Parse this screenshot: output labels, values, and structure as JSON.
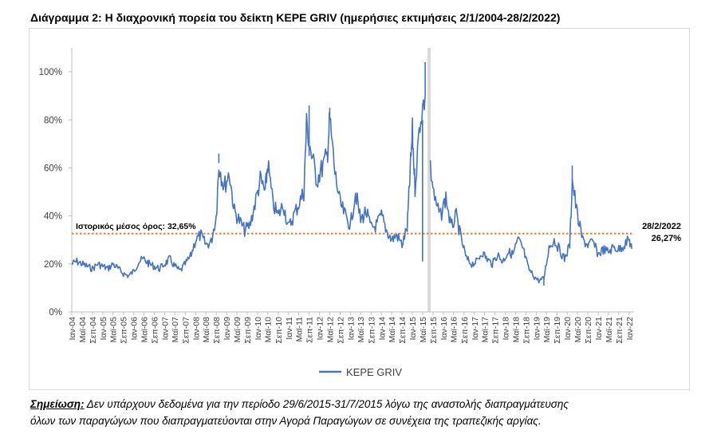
{
  "title": "Διάγραμμα 2: Η διαχρονική πορεία του δείκτη ΚΕΡΕ GRIV (ημερήσιες εκτιμήσεις 2/1/2004-28/2/2022)",
  "note": {
    "label": "Σημείωση:",
    "line1": " Δεν υπάρχουν δεδομένα για την περίοδο 29/6/2015-31/7/2015 λόγω της αναστολής διαπραγμάτευσης",
    "line2": "όλων των παραγώγων που διαπραγματεύονται στην Αγορά Παραγώγων σε συνέχεια της τραπεζικής αργίας."
  },
  "colors": {
    "series": "#4472C4",
    "mean_line": "#ED7D31",
    "gap_band": "#D9D9D9",
    "axis": "#BFBFBF"
  },
  "chart_data": {
    "type": "line",
    "title": "",
    "xlabel": "",
    "ylabel": "",
    "ylim": [
      0,
      1.1
    ],
    "y_ticks": [
      "0%",
      "20%",
      "40%",
      "60%",
      "80%",
      "100%"
    ],
    "x_tick_labels": [
      "Ιαν-04",
      "Μαϊ-04",
      "Σεπ-04",
      "Ιαν-05",
      "Μαϊ-05",
      "Σεπ-05",
      "Ιαν-06",
      "Μαϊ-06",
      "Σεπ-06",
      "Ιαν-07",
      "Μαϊ-07",
      "Σεπ-07",
      "Ιαν-08",
      "Μαϊ-08",
      "Σεπ-08",
      "Ιαν-09",
      "Μαϊ-09",
      "Σεπ-09",
      "Ιαν-10",
      "Μαϊ-10",
      "Σεπ-10",
      "Ιαν-11",
      "Μαϊ-11",
      "Σεπ-11",
      "Ιαν-12",
      "Μαϊ-12",
      "Σεπ-12",
      "Ιαν-13",
      "Μαϊ-13",
      "Σεπ-13",
      "Ιαν-14",
      "Μαϊ-14",
      "Σεπ-14",
      "Ιαν-15",
      "Μαϊ-15",
      "Σεπ-15",
      "Ιαν-16",
      "Μαϊ-16",
      "Σεπ-16",
      "Ιαν-17",
      "Μαϊ-17",
      "Σεπ-17",
      "Ιαν-18",
      "Μαϊ-18",
      "Σεπ-18",
      "Ιαν-19",
      "Μαϊ-19",
      "Σεπ-19",
      "Ιαν-20",
      "Μαϊ-20",
      "Σεπ-20",
      "Ιαν-21",
      "Μαϊ-21",
      "Σεπ-21",
      "Ιαν-22"
    ],
    "grid": false,
    "legend": "bottom",
    "series": [
      {
        "name": "ΚΕΡΕ GRIV",
        "points": [
          [
            "2004-01",
            0.2
          ],
          [
            "2004-03",
            0.21
          ],
          [
            "2004-05",
            0.2
          ],
          [
            "2004-07",
            0.19
          ],
          [
            "2004-09",
            0.18
          ],
          [
            "2004-11",
            0.2
          ],
          [
            "2005-01",
            0.19
          ],
          [
            "2005-03",
            0.18
          ],
          [
            "2005-05",
            0.2
          ],
          [
            "2005-07",
            0.18
          ],
          [
            "2005-09",
            0.16
          ],
          [
            "2005-11",
            0.15
          ],
          [
            "2006-01",
            0.17
          ],
          [
            "2006-03",
            0.21
          ],
          [
            "2006-05",
            0.22
          ],
          [
            "2006-07",
            0.2
          ],
          [
            "2006-09",
            0.19
          ],
          [
            "2006-11",
            0.18
          ],
          [
            "2007-01",
            0.2
          ],
          [
            "2007-03",
            0.22
          ],
          [
            "2007-05",
            0.19
          ],
          [
            "2007-07",
            0.17
          ],
          [
            "2007-09",
            0.2
          ],
          [
            "2007-11",
            0.23
          ],
          [
            "2008-01",
            0.3
          ],
          [
            "2008-03",
            0.32
          ],
          [
            "2008-05",
            0.28
          ],
          [
            "2008-07",
            0.29
          ],
          [
            "2008-09",
            0.4
          ],
          [
            "2008-10",
            0.62
          ],
          [
            "2008-12",
            0.52
          ],
          [
            "2009-02",
            0.58
          ],
          [
            "2009-04",
            0.42
          ],
          [
            "2009-06",
            0.38
          ],
          [
            "2009-08",
            0.34
          ],
          [
            "2009-10",
            0.36
          ],
          [
            "2009-12",
            0.45
          ],
          [
            "2010-02",
            0.55
          ],
          [
            "2010-04",
            0.5
          ],
          [
            "2010-05",
            0.62
          ],
          [
            "2010-07",
            0.45
          ],
          [
            "2010-09",
            0.4
          ],
          [
            "2010-11",
            0.45
          ],
          [
            "2011-01",
            0.35
          ],
          [
            "2011-03",
            0.4
          ],
          [
            "2011-05",
            0.45
          ],
          [
            "2011-07",
            0.5
          ],
          [
            "2011-08",
            0.78
          ],
          [
            "2011-10",
            0.65
          ],
          [
            "2011-12",
            0.55
          ],
          [
            "2012-02",
            0.6
          ],
          [
            "2012-04",
            0.65
          ],
          [
            "2012-05",
            0.8
          ],
          [
            "2012-07",
            0.58
          ],
          [
            "2012-09",
            0.45
          ],
          [
            "2012-11",
            0.4
          ],
          [
            "2013-01",
            0.36
          ],
          [
            "2013-03",
            0.5
          ],
          [
            "2013-05",
            0.38
          ],
          [
            "2013-07",
            0.42
          ],
          [
            "2013-09",
            0.35
          ],
          [
            "2013-11",
            0.36
          ],
          [
            "2014-01",
            0.4
          ],
          [
            "2014-03",
            0.34
          ],
          [
            "2014-05",
            0.3
          ],
          [
            "2014-07",
            0.32
          ],
          [
            "2014-09",
            0.28
          ],
          [
            "2014-11",
            0.35
          ],
          [
            "2014-12",
            0.55
          ],
          [
            "2015-01",
            0.75
          ],
          [
            "2015-02",
            0.52
          ],
          [
            "2015-04",
            0.8
          ],
          [
            "2015-06",
            0.9
          ],
          [
            "2015-08",
            0.6
          ],
          [
            "2015-10",
            0.45
          ],
          [
            "2015-12",
            0.4
          ],
          [
            "2016-02",
            0.48
          ],
          [
            "2016-04",
            0.35
          ],
          [
            "2016-06",
            0.4
          ],
          [
            "2016-08",
            0.3
          ],
          [
            "2016-10",
            0.22
          ],
          [
            "2016-12",
            0.2
          ],
          [
            "2017-02",
            0.21
          ],
          [
            "2017-04",
            0.25
          ],
          [
            "2017-06",
            0.22
          ],
          [
            "2017-08",
            0.2
          ],
          [
            "2017-10",
            0.24
          ],
          [
            "2017-12",
            0.21
          ],
          [
            "2018-02",
            0.25
          ],
          [
            "2018-04",
            0.24
          ],
          [
            "2018-06",
            0.3
          ],
          [
            "2018-08",
            0.26
          ],
          [
            "2018-10",
            0.18
          ],
          [
            "2018-12",
            0.15
          ],
          [
            "2019-02",
            0.13
          ],
          [
            "2019-04",
            0.14
          ],
          [
            "2019-06",
            0.27
          ],
          [
            "2019-08",
            0.3
          ],
          [
            "2019-10",
            0.26
          ],
          [
            "2019-12",
            0.22
          ],
          [
            "2020-02",
            0.28
          ],
          [
            "2020-03",
            0.55
          ],
          [
            "2020-05",
            0.4
          ],
          [
            "2020-07",
            0.3
          ],
          [
            "2020-09",
            0.28
          ],
          [
            "2020-11",
            0.29
          ],
          [
            "2021-01",
            0.24
          ],
          [
            "2021-03",
            0.26
          ],
          [
            "2021-05",
            0.25
          ],
          [
            "2021-07",
            0.27
          ],
          [
            "2021-09",
            0.26
          ],
          [
            "2021-11",
            0.28
          ],
          [
            "2022-01",
            0.3
          ],
          [
            "2022-02",
            0.2627
          ]
        ]
      }
    ],
    "gap_period": [
      "2015-06-29",
      "2015-07-31"
    ],
    "historical_mean": {
      "value": 0.3265,
      "label": "Ιστορικός μέσος όρος: 32,65%"
    },
    "end_annotation": {
      "date_label": "28/2/2022",
      "value_label": "26,27%",
      "value": 0.2627
    },
    "peaks": [
      {
        "date": "2008-10",
        "value": 0.66
      },
      {
        "date": "2011-09",
        "value": 0.86
      },
      {
        "date": "2012-05",
        "value": 0.85
      },
      {
        "date": "2015-06",
        "value": 1.04
      },
      {
        "date": "2015-05",
        "value": 0.21
      },
      {
        "date": "2020-03",
        "value": 0.61
      },
      {
        "date": "2019-04",
        "value": 0.11
      }
    ]
  }
}
